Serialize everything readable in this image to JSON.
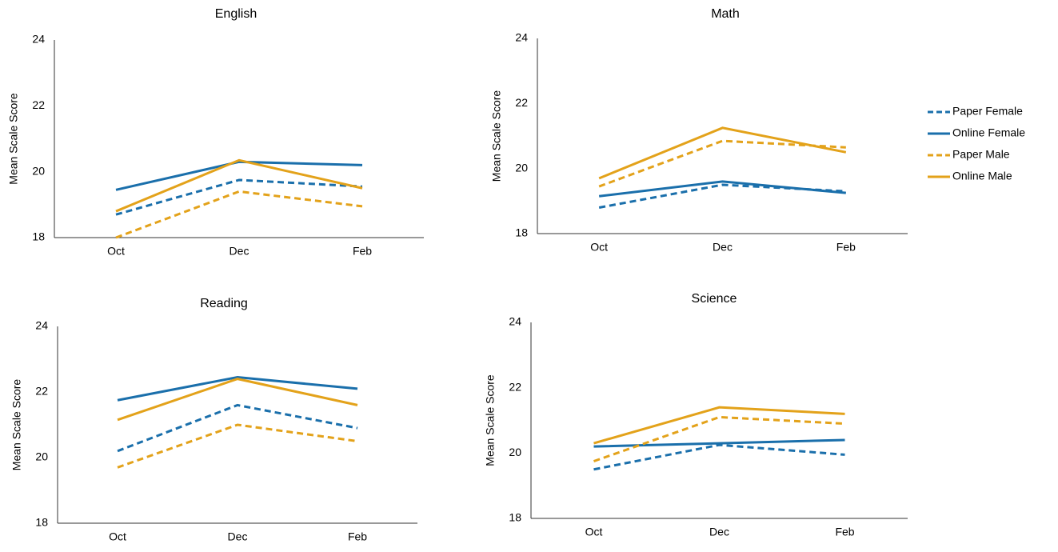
{
  "chart_data": [
    {
      "type": "line",
      "title": "English",
      "y_label": "Mean Scale Score",
      "categories": [
        "Oct",
        "Dec",
        "Feb"
      ],
      "ylim": [
        18,
        24
      ],
      "yticks": [
        18,
        20,
        22,
        24
      ],
      "grid": false,
      "series": [
        {
          "name": "Paper Female",
          "color": "#1a6fab",
          "dashed": true,
          "values": [
            18.7,
            19.75,
            19.55
          ]
        },
        {
          "name": "Online Female",
          "color": "#1a6fab",
          "dashed": false,
          "values": [
            19.45,
            20.3,
            20.2
          ]
        },
        {
          "name": "Paper Male",
          "color": "#e3a21a",
          "dashed": true,
          "values": [
            18.0,
            19.4,
            18.95
          ]
        },
        {
          "name": "Online Male",
          "color": "#e3a21a",
          "dashed": false,
          "values": [
            18.8,
            20.35,
            19.5
          ]
        }
      ]
    },
    {
      "type": "line",
      "title": "Math",
      "y_label": "Mean Scale Score",
      "categories": [
        "Oct",
        "Dec",
        "Feb"
      ],
      "ylim": [
        18,
        24
      ],
      "yticks": [
        18,
        20,
        22,
        24
      ],
      "grid": false,
      "legend": "right",
      "series": [
        {
          "name": "Paper Female",
          "color": "#1a6fab",
          "dashed": true,
          "values": [
            18.8,
            19.5,
            19.3
          ]
        },
        {
          "name": "Online Female",
          "color": "#1a6fab",
          "dashed": false,
          "values": [
            19.15,
            19.6,
            19.25
          ]
        },
        {
          "name": "Paper Male",
          "color": "#e3a21a",
          "dashed": true,
          "values": [
            19.45,
            20.85,
            20.65
          ]
        },
        {
          "name": "Online Male",
          "color": "#e3a21a",
          "dashed": false,
          "values": [
            19.7,
            21.25,
            20.5
          ]
        }
      ]
    },
    {
      "type": "line",
      "title": "Reading",
      "y_label": "Mean Scale Score",
      "categories": [
        "Oct",
        "Dec",
        "Feb"
      ],
      "ylim": [
        18,
        24
      ],
      "yticks": [
        18,
        20,
        22,
        24
      ],
      "grid": false,
      "series": [
        {
          "name": "Paper Female",
          "color": "#1a6fab",
          "dashed": true,
          "values": [
            20.2,
            21.6,
            20.9
          ]
        },
        {
          "name": "Online Female",
          "color": "#1a6fab",
          "dashed": false,
          "values": [
            21.75,
            22.45,
            22.1
          ]
        },
        {
          "name": "Paper Male",
          "color": "#e3a21a",
          "dashed": true,
          "values": [
            19.7,
            21.0,
            20.5
          ]
        },
        {
          "name": "Online Male",
          "color": "#e3a21a",
          "dashed": false,
          "values": [
            21.15,
            22.4,
            21.6
          ]
        }
      ]
    },
    {
      "type": "line",
      "title": "Science",
      "y_label": "Mean Scale Score",
      "categories": [
        "Oct",
        "Dec",
        "Feb"
      ],
      "ylim": [
        18,
        24
      ],
      "yticks": [
        18,
        20,
        22,
        24
      ],
      "grid": false,
      "series": [
        {
          "name": "Paper Female",
          "color": "#1a6fab",
          "dashed": true,
          "values": [
            19.5,
            20.25,
            19.95
          ]
        },
        {
          "name": "Online Female",
          "color": "#1a6fab",
          "dashed": false,
          "values": [
            20.2,
            20.3,
            20.4
          ]
        },
        {
          "name": "Paper Male",
          "color": "#e3a21a",
          "dashed": true,
          "values": [
            19.75,
            21.1,
            20.9
          ]
        },
        {
          "name": "Online Male",
          "color": "#e3a21a",
          "dashed": false,
          "values": [
            20.3,
            21.4,
            21.2
          ]
        }
      ]
    }
  ]
}
